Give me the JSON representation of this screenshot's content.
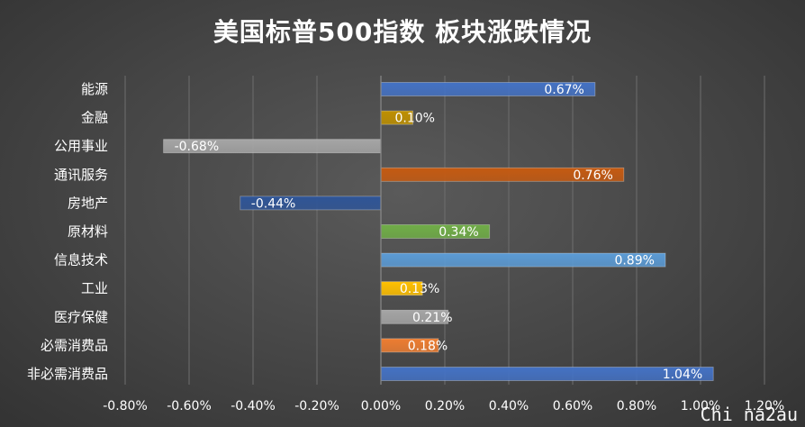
{
  "watermark": "Chi na2au",
  "chart_data": {
    "type": "bar",
    "orientation": "horizontal",
    "title": "美国标普500指数 板块涨跌情况",
    "xlabel": "",
    "ylabel": "",
    "xlim": [
      -0.8,
      1.2
    ],
    "x_ticks": [
      -0.8,
      -0.6,
      -0.4,
      -0.2,
      0.0,
      0.2,
      0.4,
      0.6,
      0.8,
      1.0,
      1.2
    ],
    "x_tick_labels": [
      "-0.80%",
      "-0.60%",
      "-0.40%",
      "-0.20%",
      "0.00%",
      "0.20%",
      "0.40%",
      "0.60%",
      "0.80%",
      "1.00%",
      "1.20%"
    ],
    "grid": "vertical",
    "legend": "none",
    "categories": [
      "能源",
      "金融",
      "公用事业",
      "通讯服务",
      "房地产",
      "原材料",
      "信息技术",
      "工业",
      "医疗保健",
      "必需消费品",
      "非必需消费品"
    ],
    "values": [
      0.67,
      0.1,
      -0.68,
      0.76,
      -0.44,
      0.34,
      0.89,
      0.13,
      0.21,
      0.18,
      1.04
    ],
    "data_labels": [
      "0.67%",
      "0.10%",
      "-0.68%",
      "0.76%",
      "-0.44%",
      "0.34%",
      "0.89%",
      "0.13%",
      "0.21%",
      "0.18%",
      "1.04%"
    ],
    "colors": [
      "#4472C4",
      "#BF9000",
      "#A5A5A5",
      "#C55A11",
      "#2F5597",
      "#70AD47",
      "#5B9BD5",
      "#FFC000",
      "#A5A5A5",
      "#ED7D31",
      "#4472C4"
    ]
  }
}
